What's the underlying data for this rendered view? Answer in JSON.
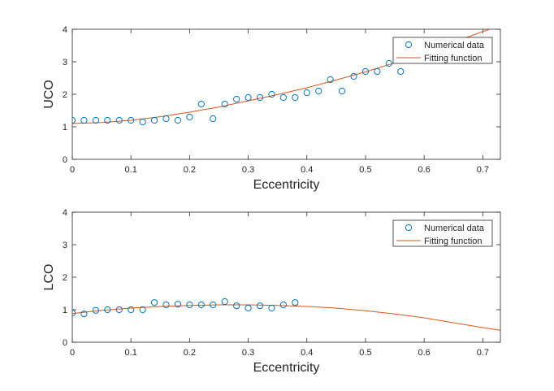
{
  "colors": {
    "numerical_marker": "#0072BD",
    "fitting_line": "#D95319",
    "axes": "#262626",
    "background": "#ffffff"
  },
  "chart_data": [
    {
      "type": "scatter",
      "title": "",
      "xlabel": "Eccentricity",
      "ylabel": "UCO",
      "xlim": [
        0,
        0.73
      ],
      "ylim": [
        0,
        4
      ],
      "xticks": [
        "0",
        "0.1",
        "0.2",
        "0.3",
        "0.4",
        "0.5",
        "0.6",
        "0.7"
      ],
      "yticks": [
        "0",
        "1",
        "2",
        "3",
        "4"
      ],
      "grid": false,
      "legend_position": "top-right",
      "series": [
        {
          "name": "Numerical data",
          "kind": "markers",
          "x": [
            0,
            0.02,
            0.04,
            0.06,
            0.08,
            0.1,
            0.12,
            0.14,
            0.16,
            0.18,
            0.2,
            0.22,
            0.24,
            0.26,
            0.28,
            0.3,
            0.32,
            0.34,
            0.36,
            0.38,
            0.4,
            0.42,
            0.44,
            0.46,
            0.48,
            0.5,
            0.52,
            0.54,
            0.56
          ],
          "y": [
            1.2,
            1.2,
            1.2,
            1.2,
            1.2,
            1.2,
            1.15,
            1.2,
            1.25,
            1.2,
            1.3,
            1.7,
            1.25,
            1.7,
            1.85,
            1.9,
            1.9,
            2.0,
            1.9,
            1.9,
            2.05,
            2.1,
            2.45,
            2.1,
            2.55,
            2.7,
            2.7,
            2.95,
            2.7
          ]
        },
        {
          "name": "Fitting function",
          "kind": "line",
          "x": [
            0,
            0.05,
            0.1,
            0.15,
            0.2,
            0.25,
            0.3,
            0.35,
            0.4,
            0.45,
            0.5,
            0.55,
            0.6,
            0.65,
            0.7,
            0.73
          ],
          "y": [
            1.1,
            1.13,
            1.2,
            1.31,
            1.45,
            1.61,
            1.8,
            1.99,
            2.2,
            2.44,
            2.69,
            2.97,
            3.27,
            3.6,
            3.93,
            4.1
          ]
        }
      ]
    },
    {
      "type": "scatter",
      "title": "",
      "xlabel": "Eccentricity",
      "ylabel": "LCO",
      "xlim": [
        0,
        0.73
      ],
      "ylim": [
        0,
        4
      ],
      "xticks": [
        "0",
        "0.1",
        "0.2",
        "0.3",
        "0.4",
        "0.5",
        "0.6",
        "0.7"
      ],
      "yticks": [
        "0",
        "1",
        "2",
        "3",
        "4"
      ],
      "grid": false,
      "legend_position": "top-right",
      "series": [
        {
          "name": "Numerical data",
          "kind": "markers",
          "x": [
            0,
            0.02,
            0.04,
            0.06,
            0.08,
            0.1,
            0.12,
            0.14,
            0.16,
            0.18,
            0.2,
            0.22,
            0.24,
            0.26,
            0.28,
            0.3,
            0.32,
            0.34,
            0.36,
            0.38
          ],
          "y": [
            0.9,
            0.87,
            0.98,
            1.0,
            1.0,
            1.0,
            1.0,
            1.22,
            1.15,
            1.17,
            1.15,
            1.15,
            1.15,
            1.25,
            1.12,
            1.05,
            1.12,
            1.05,
            1.15,
            1.22
          ]
        },
        {
          "name": "Fitting function",
          "kind": "line",
          "x": [
            0,
            0.05,
            0.1,
            0.15,
            0.2,
            0.25,
            0.3,
            0.35,
            0.4,
            0.45,
            0.5,
            0.55,
            0.6,
            0.65,
            0.7,
            0.73
          ],
          "y": [
            0.88,
            0.98,
            1.05,
            1.1,
            1.13,
            1.15,
            1.15,
            1.13,
            1.1,
            1.05,
            0.97,
            0.87,
            0.75,
            0.6,
            0.45,
            0.37
          ]
        }
      ]
    }
  ]
}
